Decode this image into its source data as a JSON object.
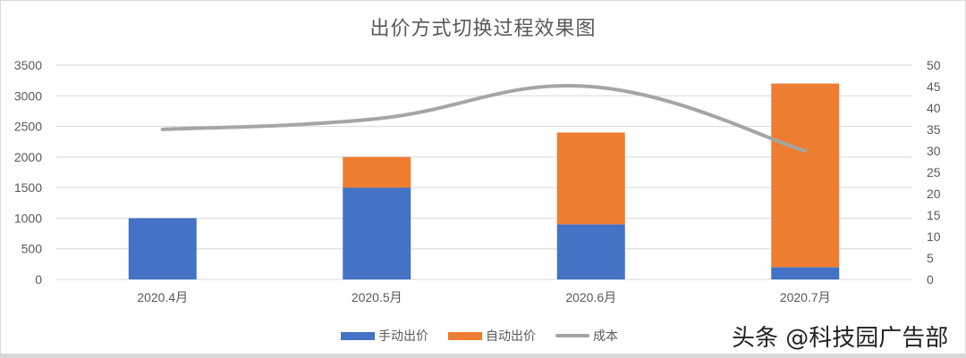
{
  "title": "出价方式切换过程效果图",
  "watermark": "头条 @科技园广告部",
  "colors": {
    "manual": "#4472C4",
    "auto": "#ED7D31",
    "cost": "#A5A5A5",
    "grid": "#D9D9D9",
    "text": "#595959"
  },
  "legend": [
    {
      "label": "手动出价",
      "type": "bar",
      "color": "#4472C4"
    },
    {
      "label": "自动出价",
      "type": "bar",
      "color": "#ED7D31"
    },
    {
      "label": "成本",
      "type": "line",
      "color": "#A5A5A5"
    }
  ],
  "axes": {
    "left_ticks": [
      "0",
      "500",
      "1000",
      "1500",
      "2000",
      "2500",
      "3000",
      "3500"
    ],
    "right_ticks": [
      "0",
      "5",
      "10",
      "15",
      "20",
      "25",
      "30",
      "35",
      "40",
      "45",
      "50"
    ]
  },
  "chart_data": {
    "type": "bar",
    "subtype": "stacked bar + smoothed line (secondary axis)",
    "title": "出价方式切换过程效果图",
    "categories": [
      "2020.4月",
      "2020.5月",
      "2020.6月",
      "2020.7月"
    ],
    "series": [
      {
        "name": "手动出价",
        "type": "bar",
        "axis": "left",
        "values": [
          1000,
          1500,
          900,
          200
        ]
      },
      {
        "name": "自动出价",
        "type": "bar",
        "axis": "left",
        "values": [
          0,
          500,
          1500,
          3000
        ]
      },
      {
        "name": "成本",
        "type": "line",
        "axis": "right",
        "smooth": true,
        "values": [
          35,
          37.5,
          45,
          30
        ]
      }
    ],
    "xlabel": "",
    "ylabel": "",
    "ylim": [
      0,
      3500
    ],
    "y2lim": [
      0,
      50
    ],
    "grid": true,
    "legend_position": "bottom"
  }
}
